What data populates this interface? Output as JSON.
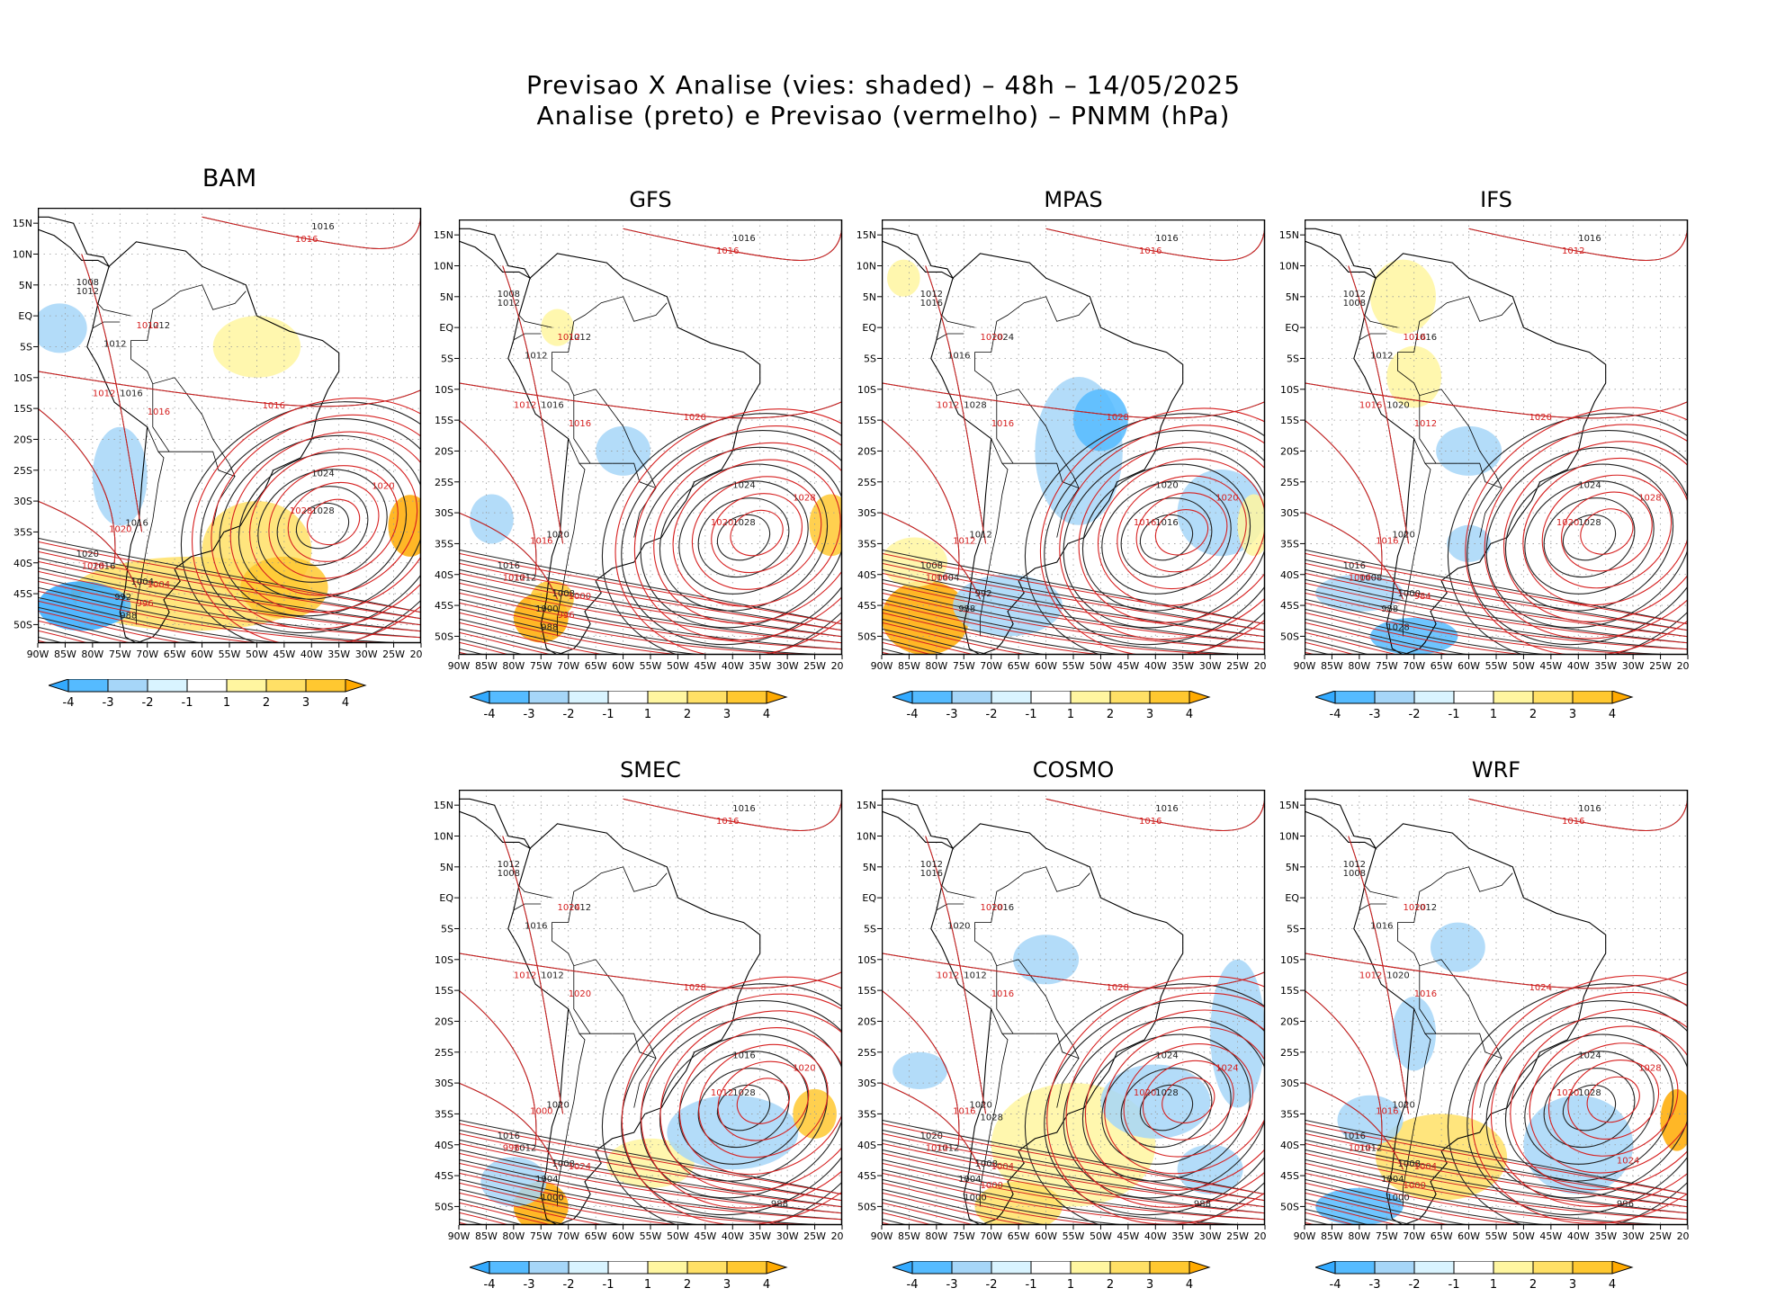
{
  "title_line1": "Previsao X Analise (vies: shaded) – 48h – 14/05/2025",
  "title_line2": "Analise (preto) e Previsao (vermelho) – PNMM (hPa)",
  "lat_ticks": [
    "15N",
    "10N",
    "5N",
    "EQ",
    "5S",
    "10S",
    "15S",
    "20S",
    "25S",
    "30S",
    "35S",
    "40S",
    "45S",
    "50S"
  ],
  "lon_ticks": [
    "90W",
    "85W",
    "80W",
    "75W",
    "70W",
    "65W",
    "60W",
    "55W",
    "50W",
    "45W",
    "40W",
    "35W",
    "30W",
    "25W",
    "20W"
  ],
  "colorbar": {
    "labels": [
      "-4",
      "-3",
      "-2",
      "-1",
      "1",
      "2",
      "3",
      "4"
    ],
    "colors": [
      "#33aaff",
      "#55bbff",
      "#a6d6f8",
      "#d9f4ff",
      "#ffffff",
      "#fff6a0",
      "#ffe066",
      "#ffc830",
      "#ffaa00"
    ]
  },
  "contour_colors": {
    "analysis": "#222222",
    "forecast": "#d62020"
  },
  "panels": [
    {
      "name": "BAM",
      "labels_black": [
        "1016",
        "1008",
        "1012",
        "1012",
        "1012",
        "1016",
        "1024",
        "1028",
        "1016",
        "1020",
        "1016",
        "1004",
        "992",
        "988"
      ],
      "labels_red": [
        "1016",
        "1012",
        "1016",
        "1012",
        "1016",
        "1020",
        "1028",
        "1020",
        "1028",
        "1004",
        "996"
      ]
    },
    {
      "name": "GFS",
      "labels_black": [
        "1016",
        "1008",
        "1012",
        "1012",
        "1012",
        "1016",
        "1024",
        "1028",
        "1020",
        "1016",
        "1012",
        "1008",
        "1000",
        "988"
      ],
      "labels_red": [
        "1016",
        "1012",
        "1016",
        "1012",
        "1020",
        "1028",
        "1020",
        "1016",
        "1012",
        "1000",
        "996"
      ]
    },
    {
      "name": "MPAS",
      "labels_black": [
        "1016",
        "1012",
        "1016",
        "1016",
        "1024",
        "1028",
        "1020",
        "1016",
        "1012",
        "1008",
        "1004",
        "992",
        "988"
      ],
      "labels_red": [
        "1016",
        "1012",
        "1016",
        "1020",
        "1028",
        "1020",
        "1016",
        "1012",
        "1004"
      ]
    },
    {
      "name": "IFS",
      "labels_black": [
        "1016",
        "1012",
        "1008",
        "1012",
        "1016",
        "1020",
        "1024",
        "1028",
        "1020",
        "1016",
        "1008",
        "1000",
        "988",
        "1028"
      ],
      "labels_red": [
        "1012",
        "1016",
        "1012",
        "1016",
        "1020",
        "1028",
        "1020",
        "1016",
        "1004",
        "984"
      ]
    },
    {
      "name": "SMEC",
      "labels_black": [
        "1016",
        "1012",
        "1008",
        "1016",
        "1012",
        "1012",
        "1016",
        "1028",
        "1020",
        "1016",
        "1012",
        "1008",
        "1004",
        "1000",
        "988"
      ],
      "labels_red": [
        "1016",
        "1012",
        "1020",
        "1024",
        "1028",
        "1020",
        "1012",
        "1000",
        "996",
        "1024"
      ]
    },
    {
      "name": "COSMO",
      "labels_black": [
        "1016",
        "1012",
        "1016",
        "1020",
        "1016",
        "1012",
        "1024",
        "1028",
        "1020",
        "1020",
        "1012",
        "1008",
        "1004",
        "1000",
        "988",
        "1028"
      ],
      "labels_red": [
        "1016",
        "1012",
        "1016",
        "1020",
        "1028",
        "1024",
        "1020",
        "1016",
        "1012",
        "1004",
        "1000"
      ]
    },
    {
      "name": "WRF",
      "labels_black": [
        "1016",
        "1012",
        "1008",
        "1016",
        "1012",
        "1020",
        "1024",
        "1028",
        "1020",
        "1016",
        "1012",
        "1008",
        "1004",
        "1000",
        "996"
      ],
      "labels_red": [
        "1016",
        "1012",
        "1016",
        "1020",
        "1024",
        "1028",
        "1020",
        "1016",
        "1012",
        "1004",
        "1000",
        "1024"
      ]
    }
  ]
}
